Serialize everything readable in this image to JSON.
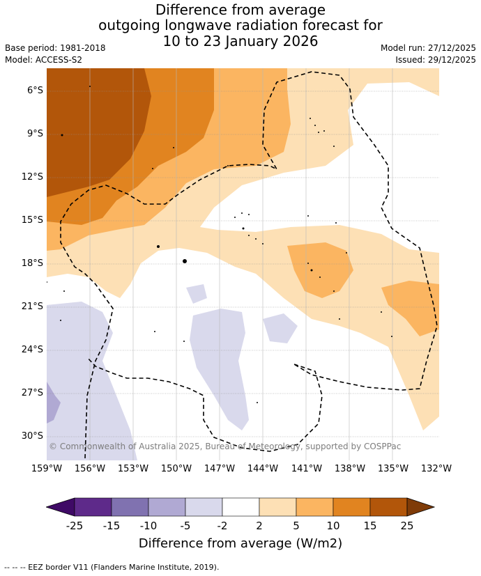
{
  "title": {
    "line1": "Difference from average",
    "line2": "outgoing longwave radiation forecast for",
    "line3": "10 to 23 January 2026"
  },
  "meta": {
    "base_period": "Base period: 1981-2018",
    "model": "Model: ACCESS-S2",
    "model_run": "Model run: 27/12/2025",
    "issued": "Issued: 29/12/2025"
  },
  "axes": {
    "lat": [
      "6°S",
      "9°S",
      "12°S",
      "15°S",
      "18°S",
      "21°S",
      "24°S",
      "27°S",
      "30°S"
    ],
    "lon": [
      "159°W",
      "156°W",
      "153°W",
      "150°W",
      "147°W",
      "144°W",
      "141°W",
      "138°W",
      "135°W",
      "132°W"
    ]
  },
  "copyright": "© Commonwealth of Australia 2025, Bureau of Meteorology, supported by COSPPac",
  "colorbar": {
    "title": "Difference from average (W/m2)",
    "ticks": [
      "-25",
      "-15",
      "-10",
      "-5",
      "-2",
      "2",
      "5",
      "10",
      "15",
      "25"
    ],
    "colors": [
      "#3f0a66",
      "#5e2a8a",
      "#8072b0",
      "#b0a9d3",
      "#d9d9ec",
      "#ffffff",
      "#fde0b5",
      "#fbb561",
      "#e18420",
      "#b2560a",
      "#7f3b08"
    ]
  },
  "footer": "--  --  -- EEZ border V11 (Flanders Marine Institute, 2019)."
}
